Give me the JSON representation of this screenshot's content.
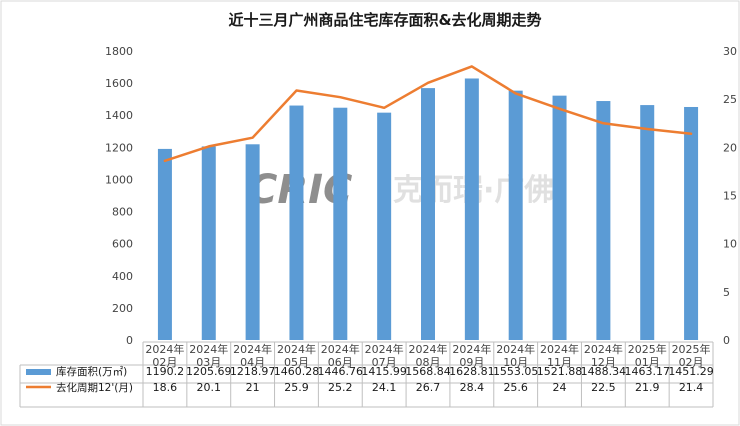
{
  "chart_data": {
    "type": "bar",
    "title": "近十三月广州商品住宅库存面积&去化周期走势",
    "categories": [
      [
        "2024年",
        "02月"
      ],
      [
        "2024年",
        "03月"
      ],
      [
        "2024年",
        "04月"
      ],
      [
        "2024年",
        "05月"
      ],
      [
        "2024年",
        "06月"
      ],
      [
        "2024年",
        "07月"
      ],
      [
        "2024年",
        "08月"
      ],
      [
        "2024年",
        "09月"
      ],
      [
        "2024年",
        "10月"
      ],
      [
        "2024年",
        "11月"
      ],
      [
        "2024年",
        "12月"
      ],
      [
        "2025年",
        "01月"
      ],
      [
        "2025年",
        "02月"
      ]
    ],
    "series": [
      {
        "name": "库存面积(万㎡)",
        "type": "bar",
        "axis": "left",
        "color": "#5b9bd5",
        "values": [
          1190.2,
          1205.69,
          1218.97,
          1460.28,
          1446.76,
          1415.99,
          1568.84,
          1628.81,
          1553.05,
          1521.88,
          1488.34,
          1463.17,
          1451.29
        ],
        "labels": [
          "1190.2",
          "1205.69",
          "1218.97",
          "1460.28",
          "1446.76",
          "1415.99",
          "1568.84",
          "1628.81",
          "1553.05",
          "1521.88",
          "1488.34",
          "1463.17",
          "1451.29"
        ]
      },
      {
        "name": "去化周期12'(月)",
        "type": "line",
        "axis": "right",
        "color": "#ed7d31",
        "values": [
          18.6,
          20.1,
          21,
          25.9,
          25.2,
          24.1,
          26.7,
          28.4,
          25.6,
          24,
          22.5,
          21.9,
          21.4
        ],
        "labels": [
          "18.6",
          "20.1",
          "21",
          "25.9",
          "25.2",
          "24.1",
          "26.7",
          "28.4",
          "25.6",
          "24",
          "22.5",
          "21.9",
          "21.4"
        ]
      }
    ],
    "y_left": {
      "min": 0,
      "max": 1800,
      "ticks": [
        "0",
        "200",
        "400",
        "600",
        "800",
        "1000",
        "1200",
        "1400",
        "1600",
        "1800"
      ]
    },
    "y_right": {
      "min": 0,
      "max": 30,
      "ticks": [
        "0",
        "5",
        "10",
        "15",
        "20",
        "25",
        "30"
      ]
    },
    "grid": false,
    "legend": "data-table-below"
  },
  "watermark": {
    "latin": "CRIC",
    "cn": "克而瑞·广佛"
  }
}
